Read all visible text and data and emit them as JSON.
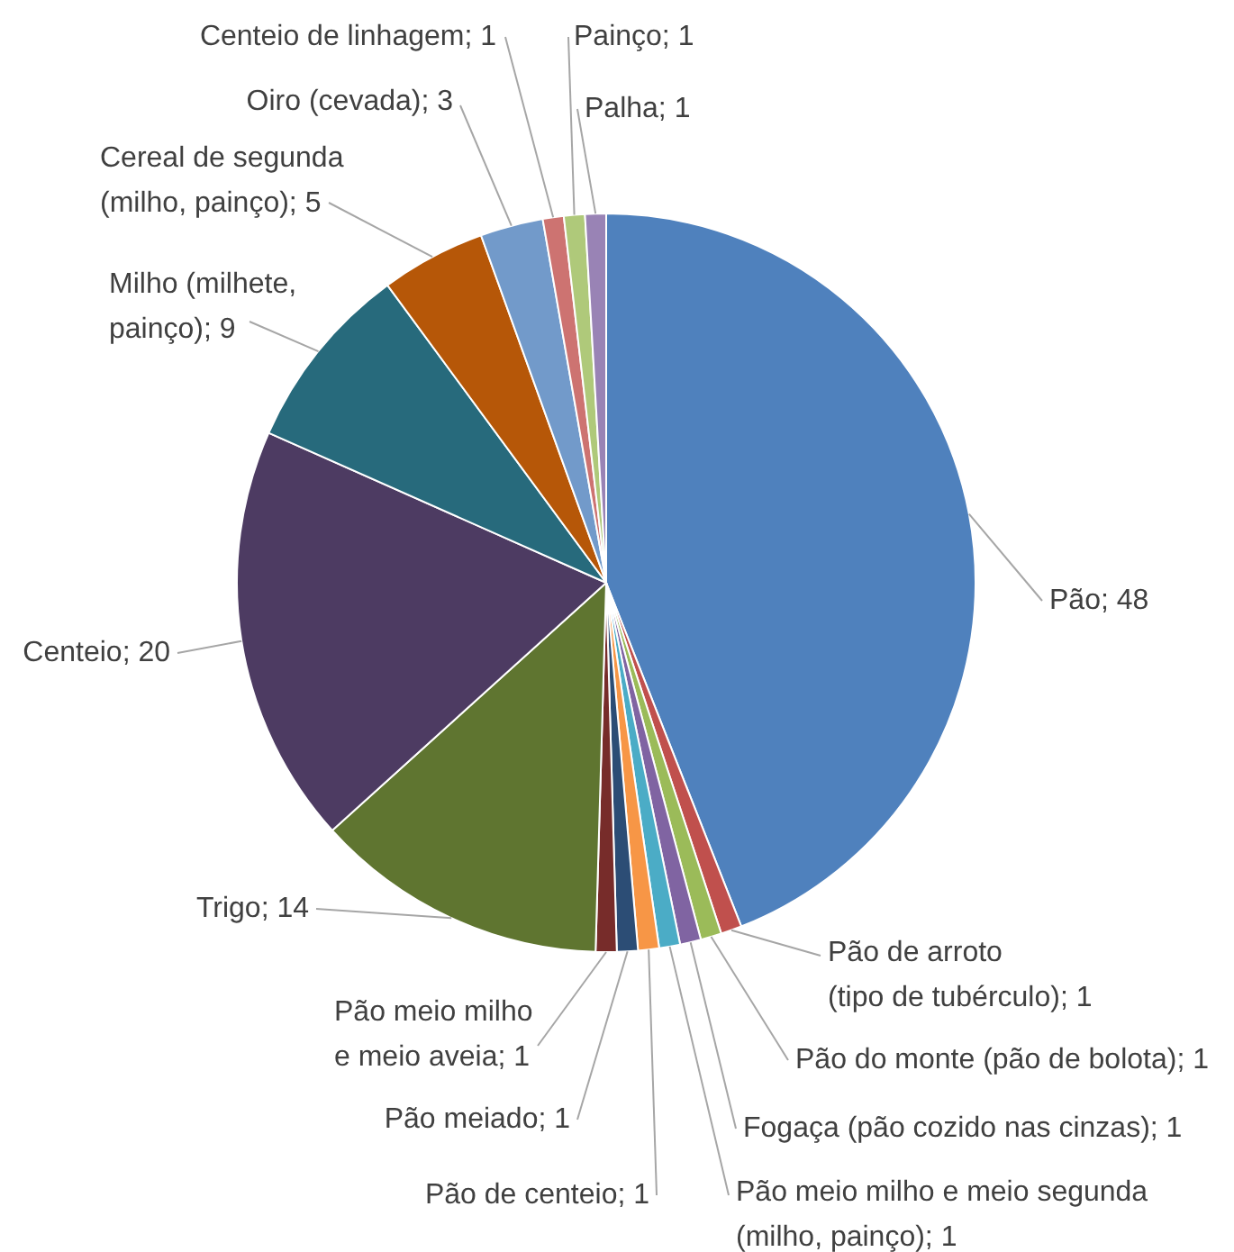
{
  "chart_data": {
    "type": "pie",
    "categories": [
      "Pão; 48",
      "Pão de arroto\n(tipo de tubérculo); 1",
      "Pão do monte (pão de bolota); 1",
      "Fogaça (pão cozido nas cinzas); 1",
      "Pão meio milho e meio segunda\n(milho, painço); 1",
      "Pão de centeio; 1",
      "Pão meiado; 1",
      "Pão meio milho\ne meio aveia; 1",
      "Trigo; 14",
      "Centeio; 20",
      "Milho (milhete,\npainço); 9",
      "Cereal de segunda\n(milho, painço); 5",
      "Oiro (cevada); 3",
      "Centeio de linhagem; 1",
      "Painço; 1",
      "Palha; 1"
    ],
    "values": [
      48,
      1,
      1,
      1,
      1,
      1,
      1,
      1,
      14,
      20,
      9,
      5,
      3,
      1,
      1,
      1
    ],
    "colors": [
      "#4f81bd",
      "#c0504d",
      "#9bbb59",
      "#8064a2",
      "#4bacc6",
      "#f79646",
      "#2c4d75",
      "#772c2a",
      "#5f7530",
      "#4d3b62",
      "#276a7c",
      "#b65708",
      "#729aca",
      "#cd7371",
      "#afc97a",
      "#9983b5"
    ]
  }
}
